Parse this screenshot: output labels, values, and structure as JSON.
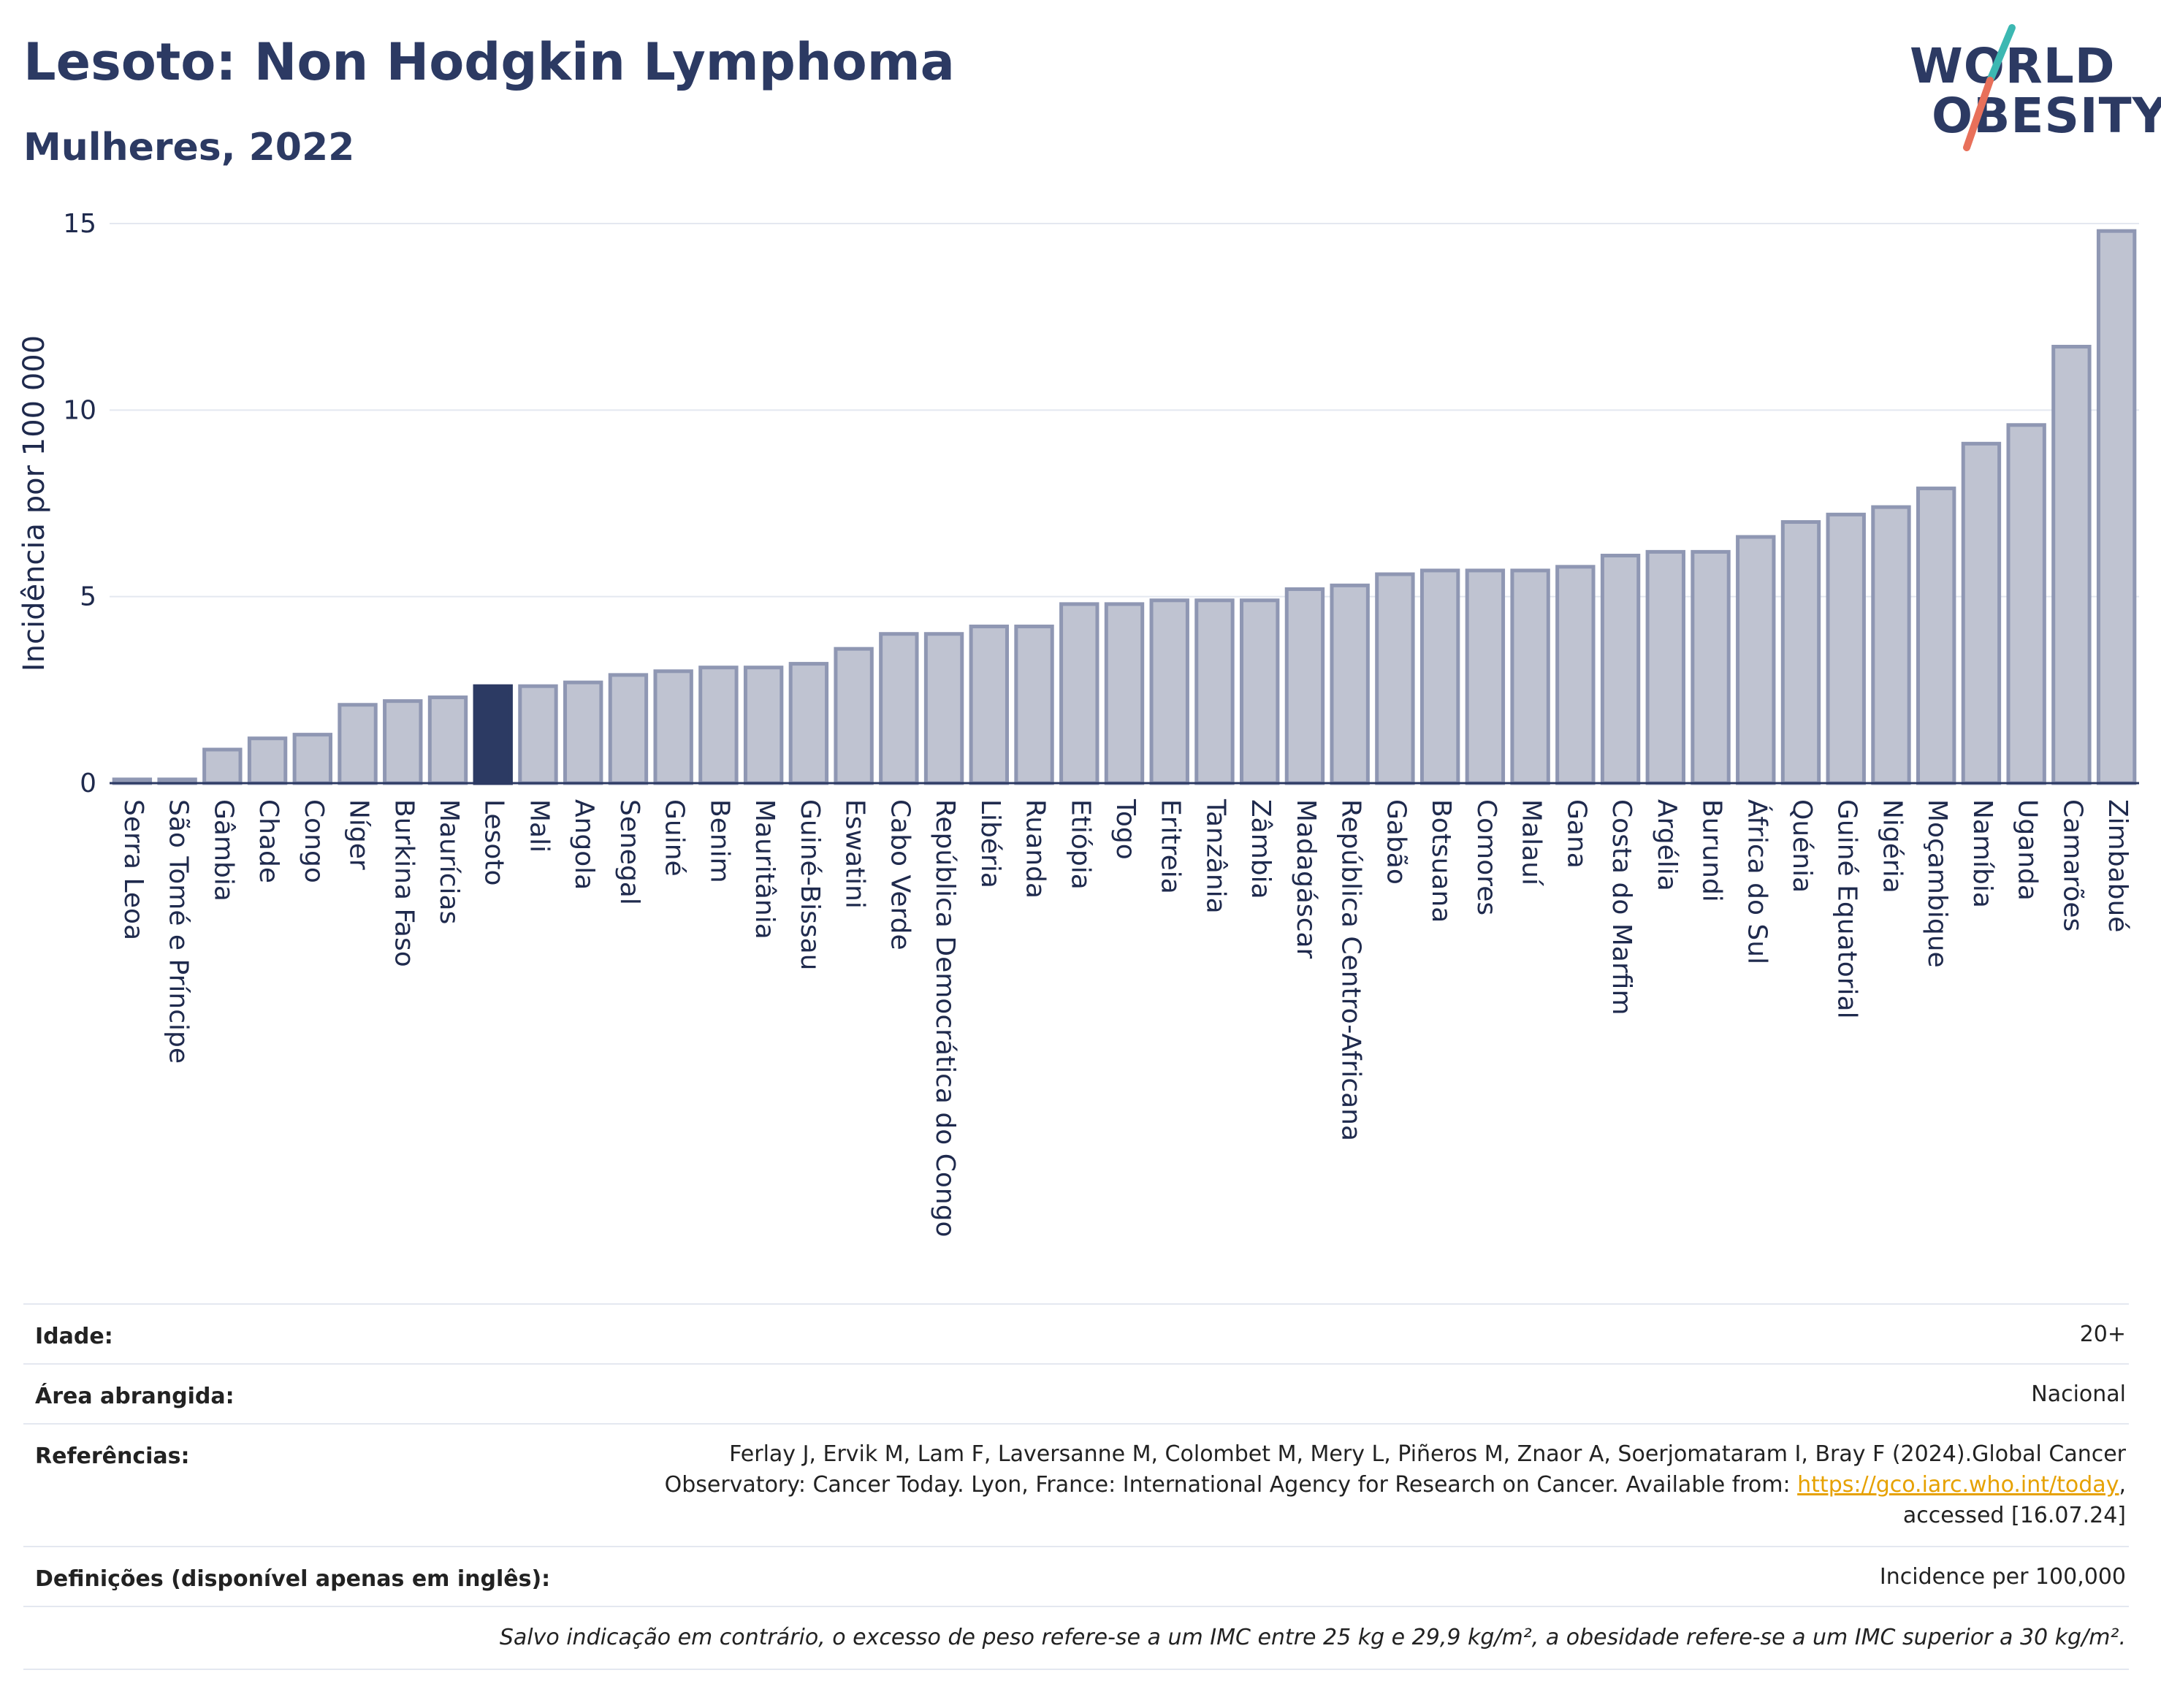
{
  "header": {
    "title": "Lesoto: Non Hodgkin Lymphoma",
    "subtitle": "Mulheres, 2022",
    "logo_line1": "WORLD",
    "logo_line2": "OBESITY"
  },
  "chart_data": {
    "type": "bar",
    "ylabel": "Incidência por 100 000",
    "ylim": [
      0,
      15
    ],
    "yticks": [
      0,
      5,
      10,
      15
    ],
    "grid": true,
    "highlight": "Lesoto",
    "colors": {
      "bar": "#bfc3d1",
      "bar_border": "#8f97b3",
      "highlight": "#2c3a63",
      "grid": "#e4e8f0",
      "axis": "#2c3a63"
    },
    "categories": [
      "Serra Leoa",
      "São Tomé e Príncipe",
      "Gâmbia",
      "Chade",
      "Congo",
      "Níger",
      "Burkina Faso",
      "Maurícias",
      "Lesoto",
      "Mali",
      "Angola",
      "Senegal",
      "Guiné",
      "Benim",
      "Mauritânia",
      "Guiné-Bissau",
      "Eswatini",
      "Cabo Verde",
      "República Democrática do Congo",
      "Libéria",
      "Ruanda",
      "Etiópia",
      "Togo",
      "Eritreia",
      "Tanzânia",
      "Zâmbia",
      "Madagáscar",
      "República Centro-Africana",
      "Gabão",
      "Botsuana",
      "Comores",
      "Malauí",
      "Gana",
      "Costa do Marfim",
      "Argélia",
      "Burundi",
      "África do Sul",
      "Quénia",
      "Guiné Equatorial",
      "Nigéria",
      "Moçambique",
      "Namíbia",
      "Uganda",
      "Camarões",
      "Zimbabué"
    ],
    "values": [
      0.1,
      0.1,
      0.9,
      1.2,
      1.3,
      2.1,
      2.2,
      2.3,
      2.6,
      2.6,
      2.7,
      2.9,
      3.0,
      3.1,
      3.1,
      3.2,
      3.6,
      4.0,
      4.0,
      4.2,
      4.2,
      4.8,
      4.8,
      4.9,
      4.9,
      4.9,
      5.2,
      5.3,
      5.6,
      5.7,
      5.7,
      5.7,
      5.8,
      6.1,
      6.2,
      6.2,
      6.6,
      7.0,
      7.2,
      7.4,
      7.9,
      9.1,
      9.6,
      11.7,
      14.8
    ]
  },
  "meta": {
    "age_label": "Idade:",
    "age_value": "20+",
    "area_label": "Área abrangida:",
    "area_value": "Nacional",
    "ref_label": "Referências:",
    "ref_line1": "Ferlay J, Ervik M, Lam F, Laversanne M, Colombet M, Mery L, Piñeros M, Znaor A, Soerjomataram I, Bray F (2024).Global Cancer",
    "ref_line2": "Observatory: Cancer Today. Lyon, France: International Agency for Research on Cancer. Available from: ",
    "ref_link": "https://gco.iarc.who.int/today",
    "ref_line2_end": ",",
    "ref_line3": "accessed [16.07.24]",
    "def_label": "Definições (disponível apenas em inglês):",
    "def_value": "Incidence per 100,000",
    "note": "Salvo indicação em contrário, o excesso de peso refere-se a um IMC entre 25 kg e 29,9 kg/m², a obesidade refere-se a um IMC superior a 30 kg/m²."
  }
}
